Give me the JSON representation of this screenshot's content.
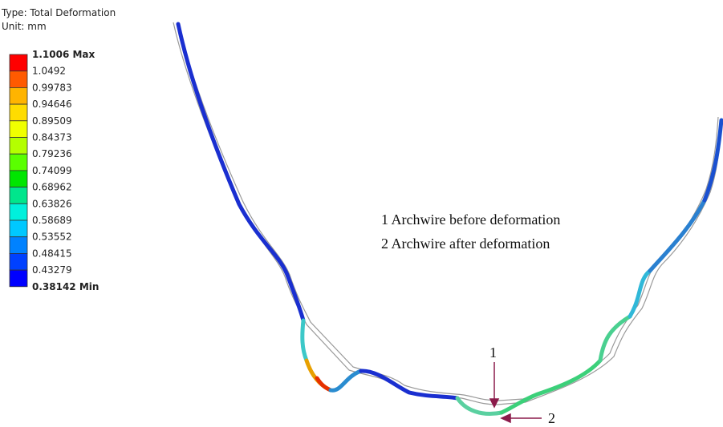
{
  "legend": {
    "type_label": "Type: Total Deformation",
    "unit_label": "Unit: mm",
    "labels": [
      "1.1006 Max",
      "1.0492",
      "0.99783",
      "0.94646",
      "0.89509",
      "0.84373",
      "0.79236",
      "0.74099",
      "0.68962",
      "0.63826",
      "0.58689",
      "0.53552",
      "0.48415",
      "0.43279",
      "0.38142 Min"
    ],
    "colors": [
      "#ff0000",
      "#ff5a00",
      "#ffb400",
      "#ffdc00",
      "#f0ff00",
      "#b4ff00",
      "#5aff00",
      "#00e600",
      "#00e68c",
      "#00f0dc",
      "#00c8ff",
      "#0082ff",
      "#0041ff",
      "#0000ff"
    ]
  },
  "annotations": {
    "line1": "1  Archwire before deformation",
    "line2": "2  Archwire after deformation",
    "arrow1": "1",
    "arrow2": "2"
  }
}
